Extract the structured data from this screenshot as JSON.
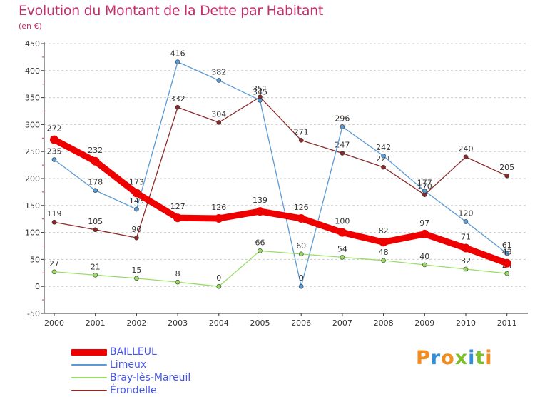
{
  "title": "Evolution du Montant de la Dette par Habitant",
  "subtitle": "(en €)",
  "logo_text": "Proxiti",
  "colors": {
    "title": "#c0306a",
    "axis": "#cc3355",
    "grid": "#cccccc",
    "legend_text": "#4455ee"
  },
  "chart_data": {
    "type": "line",
    "title": "Evolution du Montant de la Dette par Habitant",
    "ylabel": "(en €)",
    "xlabel": "",
    "x": [
      "2000",
      "2001",
      "2002",
      "2003",
      "2004",
      "2005",
      "2006",
      "2007",
      "2008",
      "2009",
      "2010",
      "2011"
    ],
    "yticks": [
      "-50",
      "0",
      "50",
      "100",
      "150",
      "200",
      "250",
      "300",
      "350",
      "400",
      "450"
    ],
    "ylim": [
      -50,
      450
    ],
    "grid": "horizontal dashed",
    "legend_position": "bottom-left",
    "series": [
      {
        "name": "Érondelle",
        "color": "#8b2a2a",
        "width": 1.3,
        "values": [
          119,
          105,
          90,
          332,
          304,
          351,
          271,
          247,
          221,
          170,
          240,
          205
        ],
        "labels": [
          "119",
          "105",
          "90",
          "332",
          "304",
          "351",
          "271",
          "247",
          "221",
          "170",
          "240",
          "205"
        ]
      },
      {
        "name": "Limeux",
        "color": "#5b9bd5",
        "width": 1.3,
        "values": [
          235,
          178,
          143,
          416,
          382,
          345,
          0,
          296,
          242,
          177,
          120,
          61
        ],
        "labels": [
          "235",
          "178",
          "143",
          "416",
          "382",
          "345",
          "0",
          "296",
          "242",
          "177",
          "120",
          "61"
        ]
      },
      {
        "name": "Bray-lès-Mareuil",
        "color": "#99dd66",
        "width": 1.3,
        "values": [
          27,
          21,
          15,
          8,
          0,
          66,
          60,
          54,
          48,
          40,
          32,
          24
        ],
        "labels": [
          "27",
          "21",
          "15",
          "8",
          "0",
          "66",
          "60",
          "54",
          "48",
          "40",
          "32",
          "24"
        ]
      },
      {
        "name": "BAILLEUL",
        "color": "#ee0000",
        "width": 9,
        "values": [
          272,
          232,
          173,
          127,
          126,
          139,
          126,
          100,
          82,
          97,
          71,
          43
        ],
        "labels": [
          "272",
          "232",
          "173",
          "127",
          "126",
          "139",
          "126",
          "100",
          "82",
          "97",
          "71",
          "43"
        ]
      }
    ]
  }
}
